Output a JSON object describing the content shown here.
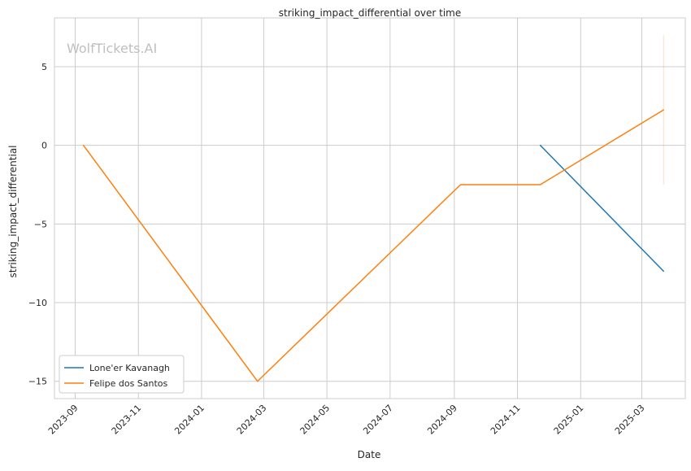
{
  "chart_data": {
    "type": "line",
    "title": "striking_impact_differential over time",
    "xlabel": "Date",
    "ylabel": "striking_impact_differential",
    "watermark": "WolfTickets.AI",
    "grid": true,
    "legend_position": "lower-left",
    "x_ticks": [
      "2023-09",
      "2023-11",
      "2024-01",
      "2024-03",
      "2024-05",
      "2024-07",
      "2024-09",
      "2024-11",
      "2025-01",
      "2025-03"
    ],
    "y_ticks": [
      5,
      0,
      -5,
      -10,
      -15
    ],
    "xlim": [
      "2023-08-12",
      "2025-04-12"
    ],
    "ylim": [
      -16.1,
      8.1
    ],
    "series": [
      {
        "name": "Lone'er Kavanagh",
        "color": "#1f77b4",
        "points": [
          {
            "x": "2024-11-23",
            "y": 0
          },
          {
            "x": "2025-03-22",
            "y": -8
          }
        ]
      },
      {
        "name": "Felipe dos Santos",
        "color": "#ff7f0e",
        "points": [
          {
            "x": "2023-09-09",
            "y": 0
          },
          {
            "x": "2024-02-24",
            "y": -15
          },
          {
            "x": "2024-09-07",
            "y": -2.5
          },
          {
            "x": "2024-11-23",
            "y": -2.5
          },
          {
            "x": "2025-03-22",
            "y": 2.25
          }
        ]
      }
    ],
    "error_band": {
      "x": "2025-03-22",
      "y_low": -2.5,
      "y_high": 7,
      "color": "#ff7f0e"
    }
  }
}
